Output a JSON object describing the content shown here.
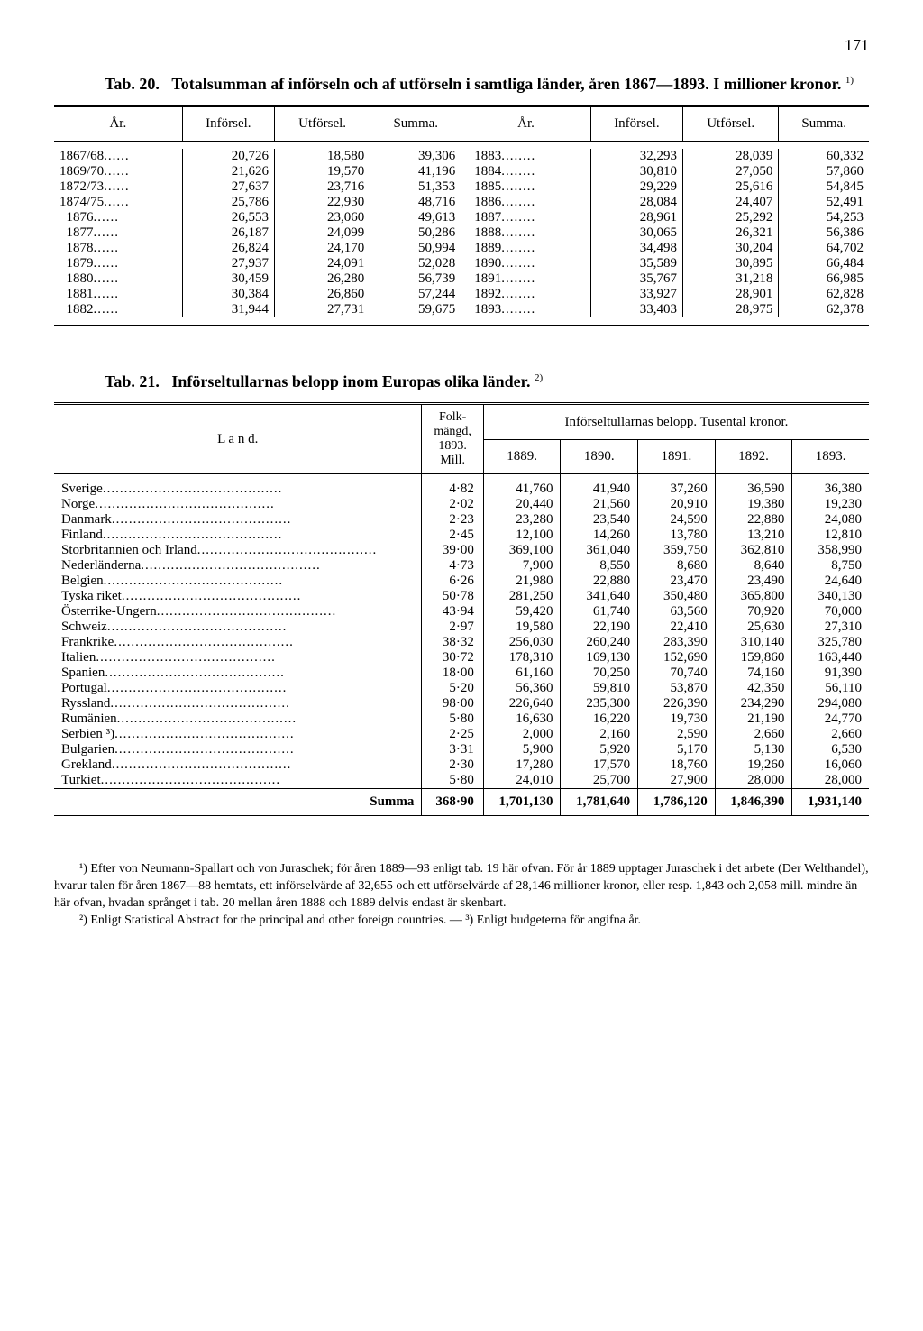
{
  "page_number": "171",
  "tab20": {
    "title_prefix": "Tab. 20.",
    "title_text": "Totalsumman af införseln och af utförseln i samtliga länder, åren 1867—1893. I millioner kronor.",
    "title_note": "1)",
    "headers": [
      "År.",
      "Införsel.",
      "Utförsel.",
      "Summa.",
      "År.",
      "Införsel.",
      "Utförsel.",
      "Summa."
    ],
    "rows": [
      [
        "1867/68",
        "20,726",
        "18,580",
        "39,306",
        "1883",
        "32,293",
        "28,039",
        "60,332"
      ],
      [
        "1869/70",
        "21,626",
        "19,570",
        "41,196",
        "1884",
        "30,810",
        "27,050",
        "57,860"
      ],
      [
        "1872/73",
        "27,637",
        "23,716",
        "51,353",
        "1885",
        "29,229",
        "25,616",
        "54,845"
      ],
      [
        "1874/75",
        "25,786",
        "22,930",
        "48,716",
        "1886",
        "28,084",
        "24,407",
        "52,491"
      ],
      [
        "1876",
        "26,553",
        "23,060",
        "49,613",
        "1887",
        "28,961",
        "25,292",
        "54,253"
      ],
      [
        "1877",
        "26,187",
        "24,099",
        "50,286",
        "1888",
        "30,065",
        "26,321",
        "56,386"
      ],
      [
        "1878",
        "26,824",
        "24,170",
        "50,994",
        "1889",
        "34,498",
        "30,204",
        "64,702"
      ],
      [
        "1879",
        "27,937",
        "24,091",
        "52,028",
        "1890",
        "35,589",
        "30,895",
        "66,484"
      ],
      [
        "1880",
        "30,459",
        "26,280",
        "56,739",
        "1891",
        "35,767",
        "31,218",
        "66,985"
      ],
      [
        "1881",
        "30,384",
        "26,860",
        "57,244",
        "1892",
        "33,927",
        "28,901",
        "62,828"
      ],
      [
        "1882",
        "31,944",
        "27,731",
        "59,675",
        "1893",
        "33,403",
        "28,975",
        "62,378"
      ]
    ]
  },
  "tab21": {
    "title_prefix": "Tab. 21.",
    "title_text": "Införseltullarnas belopp inom Europas olika länder.",
    "title_note": "2)",
    "h_land": "L a n d.",
    "h_folk": "Folk-\nmängd,\n1893.\nMill.",
    "h_belopp": "Införseltullarnas belopp.   Tusental kronor.",
    "years": [
      "1889.",
      "1890.",
      "1891.",
      "1892.",
      "1893."
    ],
    "rows": [
      [
        "Sverige",
        "4·82",
        "41,760",
        "41,940",
        "37,260",
        "36,590",
        "36,380"
      ],
      [
        "Norge",
        "2·02",
        "20,440",
        "21,560",
        "20,910",
        "19,380",
        "19,230"
      ],
      [
        "Danmark",
        "2·23",
        "23,280",
        "23,540",
        "24,590",
        "22,880",
        "24,080"
      ],
      [
        "Finland",
        "2·45",
        "12,100",
        "14,260",
        "13,780",
        "13,210",
        "12,810"
      ],
      [
        "Storbritannien och Irland",
        "39·00",
        "369,100",
        "361,040",
        "359,750",
        "362,810",
        "358,990"
      ],
      [
        "Nederländerna",
        "4·73",
        "7,900",
        "8,550",
        "8,680",
        "8,640",
        "8,750"
      ],
      [
        "Belgien",
        "6·26",
        "21,980",
        "22,880",
        "23,470",
        "23,490",
        "24,640"
      ],
      [
        "Tyska riket",
        "50·78",
        "281,250",
        "341,640",
        "350,480",
        "365,800",
        "340,130"
      ],
      [
        "Österrike-Ungern",
        "43·94",
        "59,420",
        "61,740",
        "63,560",
        "70,920",
        "70,000"
      ],
      [
        "Schweiz",
        "2·97",
        "19,580",
        "22,190",
        "22,410",
        "25,630",
        "27,310"
      ],
      [
        "Frankrike",
        "38·32",
        "256,030",
        "260,240",
        "283,390",
        "310,140",
        "325,780"
      ],
      [
        "Italien",
        "30·72",
        "178,310",
        "169,130",
        "152,690",
        "159,860",
        "163,440"
      ],
      [
        "Spanien",
        "18·00",
        "61,160",
        "70,250",
        "70,740",
        "74,160",
        "91,390"
      ],
      [
        "Portugal",
        "5·20",
        "56,360",
        "59,810",
        "53,870",
        "42,350",
        "56,110"
      ],
      [
        "Ryssland",
        "98·00",
        "226,640",
        "235,300",
        "226,390",
        "234,290",
        "294,080"
      ],
      [
        "Rumänien",
        "5·80",
        "16,630",
        "16,220",
        "19,730",
        "21,190",
        "24,770"
      ],
      [
        "Serbien ³)",
        "2·25",
        "2,000",
        "2,160",
        "2,590",
        "2,660",
        "2,660"
      ],
      [
        "Bulgarien",
        "3·31",
        "5,900",
        "5,920",
        "5,170",
        "5,130",
        "6,530"
      ],
      [
        "Grekland",
        "2·30",
        "17,280",
        "17,570",
        "18,760",
        "19,260",
        "16,060"
      ],
      [
        "Turkiet",
        "5·80",
        "24,010",
        "25,700",
        "27,900",
        "28,000",
        "28,000"
      ]
    ],
    "sum_label": "Summa",
    "sum": [
      "368·90",
      "1,701,130",
      "1,781,640",
      "1,786,120",
      "1,846,390",
      "1,931,140"
    ]
  },
  "footnotes": {
    "n1": "¹) Efter von Neumann-Spallart och von Juraschek; för åren 1889—93 enligt tab. 19 här ofvan. För år 1889 upptager Juraschek i det arbete (Der Welthandel), hvarur talen för åren 1867—88 hemtats, ett införselvärde af 32,655 och ett utförselvärde af 28,146 millioner kronor, eller resp. 1,843 och 2,058 mill. mindre än här ofvan, hvadan språnget i tab. 20 mellan åren 1888 och 1889 delvis endast är skenbart.",
    "n2": "²) Enligt Statistical Abstract for the principal and other foreign countries. — ³) Enligt budgeterna för angifna år."
  }
}
